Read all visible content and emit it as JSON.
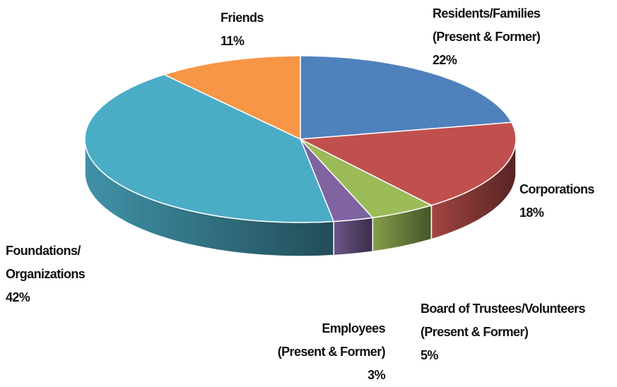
{
  "chart_data": {
    "type": "pie",
    "categories": [
      "Residents/Families\n(Present & Former)",
      "Corporations",
      "Board of Trustees/Volunteers\n(Present & Former)",
      "Employees\n(Present & Former)",
      "Foundations/\nOrganizations",
      "Friends"
    ],
    "values": [
      22,
      18,
      5,
      3,
      42,
      11
    ],
    "value_labels": [
      "22%",
      "18%",
      "5%",
      "3%",
      "42%",
      "11%"
    ],
    "colors": [
      "#4f81bd",
      "#c0504d",
      "#9bbb59",
      "#8064a2",
      "#4bacc6",
      "#f79646"
    ]
  }
}
